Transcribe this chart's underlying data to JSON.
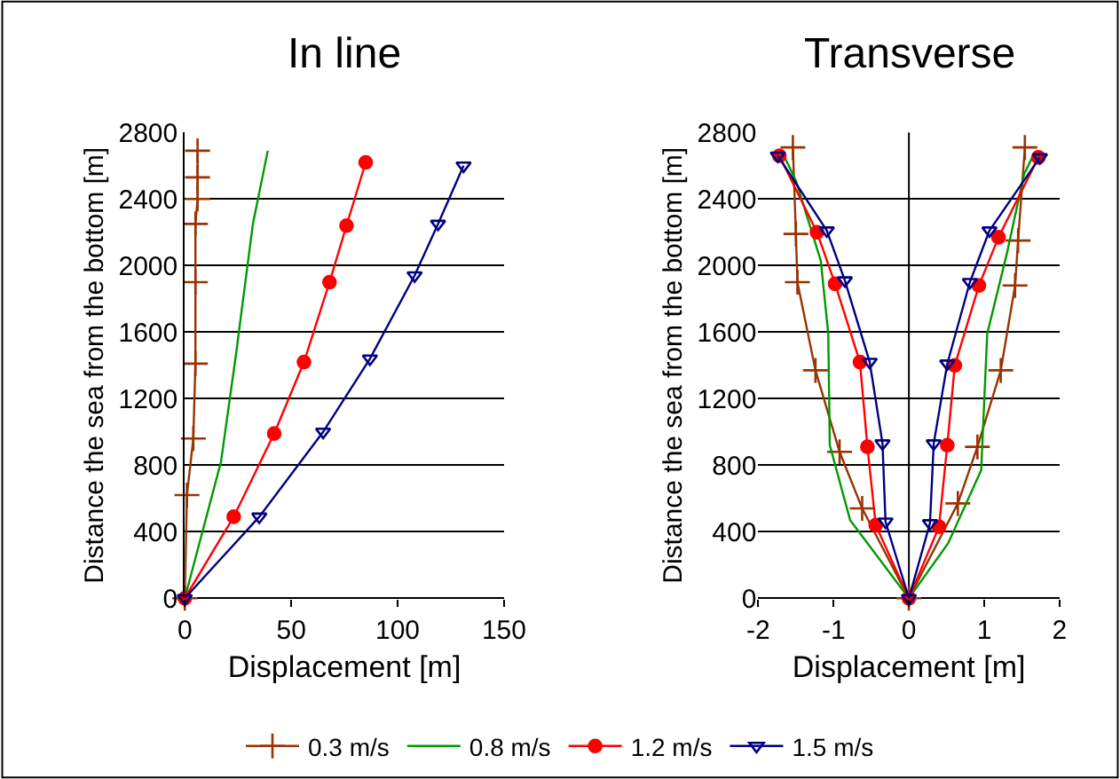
{
  "chart_data": [
    {
      "type": "line",
      "title": "In line",
      "xlabel": "Displacement [m]",
      "ylabel": "Distance the sea from the bottom [m]",
      "xlim": [
        0,
        150
      ],
      "xticks": [
        0,
        50,
        100,
        150
      ],
      "ylim": [
        0,
        2800
      ],
      "yticks": [
        0,
        400,
        800,
        1200,
        1600,
        2000,
        2400,
        2800
      ],
      "grid": "y",
      "legend": "bottom",
      "series": [
        {
          "name": "0.3 m/s",
          "color": "#993300",
          "marker": "cross",
          "x": [
            0,
            1,
            4,
            5,
            5,
            5,
            6,
            6,
            6
          ],
          "values": [
            0,
            620,
            960,
            1410,
            1900,
            2250,
            2400,
            2530,
            2690
          ]
        },
        {
          "name": "0.8 m/s",
          "color": "#009900",
          "marker": "none",
          "x": [
            0,
            17,
            24,
            32,
            39
          ],
          "values": [
            0,
            820,
            1460,
            2250,
            2690
          ]
        },
        {
          "name": "1.2 m/s",
          "color": "#ff0000",
          "marker": "circle",
          "x": [
            0,
            23,
            42,
            56,
            68,
            76,
            85
          ],
          "values": [
            0,
            490,
            990,
            1420,
            1900,
            2240,
            2620
          ]
        },
        {
          "name": "1.5 m/s",
          "color": "#000080",
          "marker": "triangle",
          "x": [
            0,
            35,
            65,
            87,
            108,
            119,
            131
          ],
          "values": [
            0,
            490,
            1000,
            1440,
            1940,
            2250,
            2600
          ]
        }
      ]
    },
    {
      "type": "line",
      "title": "Transverse",
      "xlabel": "Displacement [m]",
      "ylabel": "Distance the sea from the bottom [m]",
      "xlim": [
        -2,
        2
      ],
      "xticks": [
        -2,
        -1,
        0,
        1,
        2
      ],
      "ref_lines": [
        {
          "axis": "x",
          "value": 0
        }
      ],
      "ylim": [
        0,
        2800
      ],
      "yticks": [
        0,
        400,
        800,
        1200,
        1600,
        2000,
        2400,
        2800
      ],
      "grid": "y",
      "series": [
        {
          "color": "#993300",
          "marker": "cross",
          "x": [
            -1.54,
            -1.5,
            -1.48,
            -1.24,
            -0.92,
            -0.62,
            0,
            0.65,
            0.91,
            1.22,
            1.41,
            1.45,
            1.54
          ],
          "values": [
            2710,
            2190,
            1900,
            1370,
            880,
            540,
            0,
            570,
            910,
            1370,
            1880,
            2150,
            2710
          ]
        },
        {
          "color": "#009900",
          "marker": "none",
          "x": [
            -1.68,
            -1.5,
            -1.17,
            -1.07,
            -1.05,
            -0.78,
            0,
            0.52,
            0.96,
            1.04,
            1.3,
            1.53,
            1.66
          ],
          "values": [
            2680,
            2510,
            2030,
            1590,
            920,
            470,
            0,
            330,
            770,
            1590,
            2070,
            2550,
            2670
          ]
        },
        {
          "color": "#ff0000",
          "marker": "circle",
          "x": [
            -1.72,
            -1.22,
            -0.98,
            -0.65,
            -0.55,
            -0.44,
            0,
            0.4,
            0.51,
            0.61,
            0.93,
            1.19,
            1.72
          ],
          "values": [
            2660,
            2200,
            1890,
            1420,
            910,
            440,
            0,
            430,
            920,
            1400,
            1880,
            2170,
            2650
          ]
        },
        {
          "color": "#000080",
          "marker": "triangle",
          "x": [
            -1.74,
            -1.09,
            -0.85,
            -0.52,
            -0.35,
            -0.31,
            0,
            0.28,
            0.33,
            0.51,
            0.81,
            1.07,
            1.74
          ],
          "values": [
            2660,
            2210,
            1910,
            1420,
            930,
            460,
            0,
            450,
            930,
            1410,
            1900,
            2210,
            2650
          ]
        }
      ]
    }
  ]
}
